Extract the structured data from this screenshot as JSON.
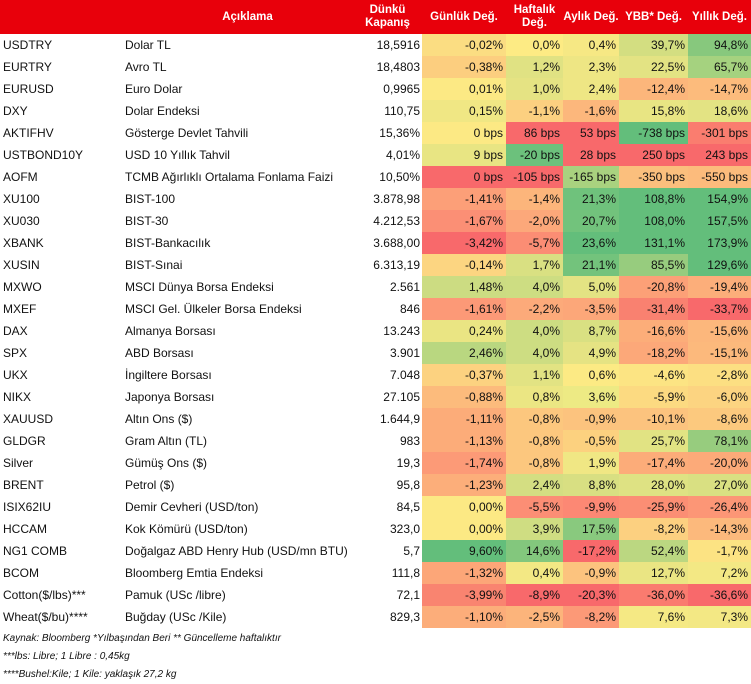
{
  "header": {
    "description": "Açıklama",
    "close": "Dünkü Kapanış",
    "daily": "Günlük Değ.",
    "weekly": "Haftalık Değ.",
    "monthly": "Aylık Değ.",
    "ytd": "YBB* Değ.",
    "yearly": "Yıllık Değ."
  },
  "rows": [
    {
      "code": "USDTRY",
      "desc": "Dolar TL",
      "close": "18,5916",
      "d": "-0,02%",
      "w": "0,0%",
      "m": "0,4%",
      "y": "39,7%",
      "yy": "94,8%"
    },
    {
      "code": "EURTRY",
      "desc": "Avro TL",
      "close": "18,4803",
      "d": "-0,38%",
      "w": "1,2%",
      "m": "2,3%",
      "y": "22,5%",
      "yy": "65,7%"
    },
    {
      "code": "EURUSD",
      "desc": "Euro Dolar",
      "close": "0,9965",
      "d": "0,01%",
      "w": "1,0%",
      "m": "2,4%",
      "y": "-12,4%",
      "yy": "-14,7%"
    },
    {
      "code": "DXY",
      "desc": "Dolar Endeksi",
      "close": "110,75",
      "d": "0,15%",
      "w": "-1,1%",
      "m": "-1,6%",
      "y": "15,8%",
      "yy": "18,6%"
    },
    {
      "code": "AKTIFHV",
      "desc": "Gösterge Devlet Tahvili",
      "close": "15,36%",
      "d": "0 bps",
      "w": "86 bps",
      "m": "53 bps",
      "y": "-738 bps",
      "yy": "-301 bps"
    },
    {
      "code": "USTBOND10Y",
      "desc": "USD 10 Yıllık Tahvil",
      "close": "4,01%",
      "d": "9 bps",
      "w": "-20 bps",
      "m": "28 bps",
      "y": "250 bps",
      "yy": "243 bps"
    },
    {
      "code": "AOFM",
      "desc": "TCMB Ağırlıklı Ortalama Fonlama Faizi",
      "close": "10,50%",
      "d": "0 bps",
      "w": "-105 bps",
      "m": "-165 bps",
      "y": "-350 bps",
      "yy": "-550 bps"
    },
    {
      "code": "XU100",
      "desc": "BIST-100",
      "close": "3.878,98",
      "d": "-1,41%",
      "w": "-1,4%",
      "m": "21,3%",
      "y": "108,8%",
      "yy": "154,9%"
    },
    {
      "code": "XU030",
      "desc": "BIST-30",
      "close": "4.212,53",
      "d": "-1,67%",
      "w": "-2,0%",
      "m": "20,7%",
      "y": "108,0%",
      "yy": "157,5%"
    },
    {
      "code": "XBANK",
      "desc": "BIST-Bankacılık",
      "close": "3.688,00",
      "d": "-3,42%",
      "w": "-5,7%",
      "m": "23,6%",
      "y": "131,1%",
      "yy": "173,9%"
    },
    {
      "code": "XUSIN",
      "desc": "BIST-Sınai",
      "close": "6.313,19",
      "d": "-0,14%",
      "w": "1,7%",
      "m": "21,1%",
      "y": "85,5%",
      "yy": "129,6%"
    },
    {
      "code": "MXWO",
      "desc": "MSCI Dünya Borsa Endeksi",
      "close": "2.561",
      "d": "1,48%",
      "w": "4,0%",
      "m": "5,0%",
      "y": "-20,8%",
      "yy": "-19,4%"
    },
    {
      "code": "MXEF",
      "desc": "MSCI Gel. Ülkeler Borsa Endeksi",
      "close": "846",
      "d": "-1,61%",
      "w": "-2,2%",
      "m": "-3,5%",
      "y": "-31,4%",
      "yy": "-33,7%"
    },
    {
      "code": "DAX",
      "desc": "Almanya Borsası",
      "close": "13.243",
      "d": "0,24%",
      "w": "4,0%",
      "m": "8,7%",
      "y": "-16,6%",
      "yy": "-15,6%"
    },
    {
      "code": "SPX",
      "desc": "ABD Borsası",
      "close": "3.901",
      "d": "2,46%",
      "w": "4,0%",
      "m": "4,9%",
      "y": "-18,2%",
      "yy": "-15,1%"
    },
    {
      "code": "UKX",
      "desc": "İngiltere Borsası",
      "close": "7.048",
      "d": "-0,37%",
      "w": "1,1%",
      "m": "0,6%",
      "y": "-4,6%",
      "yy": "-2,8%"
    },
    {
      "code": "NIKX",
      "desc": "Japonya Borsası",
      "close": "27.105",
      "d": "-0,88%",
      "w": "0,8%",
      "m": "3,6%",
      "y": "-5,9%",
      "yy": "-6,0%"
    },
    {
      "code": "XAUUSD",
      "desc": "Altın Ons ($)",
      "close": "1.644,9",
      "d": "-1,11%",
      "w": "-0,8%",
      "m": "-0,9%",
      "y": "-10,1%",
      "yy": "-8,6%"
    },
    {
      "code": "GLDGR",
      "desc": "Gram Altın (TL)",
      "close": "983",
      "d": "-1,13%",
      "w": "-0,8%",
      "m": "-0,5%",
      "y": "25,7%",
      "yy": "78,1%"
    },
    {
      "code": "Silver",
      "desc": "Gümüş Ons ($)",
      "close": "19,3",
      "d": "-1,74%",
      "w": "-0,8%",
      "m": "1,9%",
      "y": "-17,4%",
      "yy": "-20,0%"
    },
    {
      "code": "BRENT",
      "desc": "Petrol ($)",
      "close": "95,8",
      "d": "-1,23%",
      "w": "2,4%",
      "m": "8,8%",
      "y": "28,0%",
      "yy": "27,0%"
    },
    {
      "code": "ISIX62IU",
      "desc": "Demir Cevheri (USD/ton)",
      "close": "84,5",
      "d": "0,00%",
      "w": "-5,5%",
      "m": "-9,9%",
      "y": "-25,9%",
      "yy": "-26,4%"
    },
    {
      "code": "HCCAM",
      "desc": "Kok Kömürü (USD/ton)",
      "close": "323,0",
      "d": "0,00%",
      "w": "3,9%",
      "m": "17,5%",
      "y": "-8,2%",
      "yy": "-14,3%"
    },
    {
      "code": "NG1 COMB",
      "desc": "Doğalgaz ABD Henry Hub (USD/mn BTU)",
      "close": "5,7",
      "d": "9,60%",
      "w": "14,6%",
      "m": "-17,2%",
      "y": "52,4%",
      "yy": "-1,7%"
    },
    {
      "code": "BCOM",
      "desc": "Bloomberg Emtia Endeksi",
      "close": "111,8",
      "d": "-1,32%",
      "w": "0,4%",
      "m": "-0,9%",
      "y": "12,7%",
      "yy": "7,2%"
    },
    {
      "code": "Cotton($/lbs)***",
      "desc": "Pamuk (USc /libre)",
      "close": "72,1",
      "d": "-3,99%",
      "w": "-8,9%",
      "m": "-20,3%",
      "y": "-36,0%",
      "yy": "-36,6%"
    },
    {
      "code": "Wheat($/bu)****",
      "desc": "Buğday (USc /Kile)",
      "close": "829,3",
      "d": "-1,10%",
      "w": "-2,5%",
      "m": "-8,2%",
      "y": "7,6%",
      "yy": "7,3%"
    }
  ],
  "colors": {
    "d": [
      "#fbdd82",
      "#fcce7f",
      "#fce984",
      "#f0e784",
      "#fce984",
      "#e8e583",
      "#f8696b",
      "#fc9f78",
      "#fb8f75",
      "#f8696b",
      "#fcd581",
      "#ccdc82",
      "#fc9977",
      "#eae583",
      "#b9d780",
      "#fcd280",
      "#fcbb7c",
      "#fcac79",
      "#fcac79",
      "#fc9a77",
      "#fcae7a",
      "#fce984",
      "#fce984",
      "#63be7b",
      "#fca678",
      "#f98470",
      "#fcad7a"
    ],
    "w": [
      "#fdeb84",
      "#e0e283",
      "#e5e383",
      "#fcd080",
      "#f8696b",
      "#6cc17c",
      "#f8696b",
      "#fcb57b",
      "#fca87a",
      "#fb8d74",
      "#d9e082",
      "#cddd82",
      "#fcaa7a",
      "#cddd82",
      "#cddd82",
      "#e2e383",
      "#ebe683",
      "#fcc77e",
      "#fcc77e",
      "#fcc77e",
      "#d4de82",
      "#fc8e75",
      "#cfdd82",
      "#83c77d",
      "#f3e884",
      "#f8696b",
      "#fcb47b"
    ],
    "m": [
      "#f6e884",
      "#eee684",
      "#eee684",
      "#fcb77c",
      "#f8696b",
      "#f8696b",
      "#a9d27f",
      "#6fc27c",
      "#72c37c",
      "#63be7b",
      "#73c37c",
      "#e3e383",
      "#fca779",
      "#d9e082",
      "#e5e383",
      "#fcea84",
      "#edea84",
      "#fcc37e",
      "#fcd17f",
      "#f0e784",
      "#d8df82",
      "#fc8874",
      "#89c97e",
      "#f8696b",
      "#fcc37e",
      "#f8696b",
      "#fc9977"
    ],
    "y": [
      "#d3de81",
      "#e3e383",
      "#fcb67b",
      "#e8e583",
      "#63be7b",
      "#f8696b",
      "#fbbf7d",
      "#63be7b",
      "#63be7b",
      "#63be7b",
      "#97cc7e",
      "#fca077",
      "#f98170",
      "#fcad79",
      "#fca879",
      "#fce483",
      "#fcda81",
      "#fcc37e",
      "#e1e383",
      "#fcac79",
      "#dee283",
      "#fb8e74",
      "#fcd080",
      "#bbd781",
      "#eae583",
      "#fa7b6f",
      "#f5e984"
    ],
    "yy": [
      "#87c87d",
      "#a5d27f",
      "#fcbb7c",
      "#e3e383",
      "#fa7d6f",
      "#f8696b",
      "#fcbb7c",
      "#63be7b",
      "#63be7b",
      "#63be7b",
      "#63be7b",
      "#fcae7a",
      "#f8696b",
      "#fcb77c",
      "#fcb97c",
      "#fcdf82",
      "#fcd481",
      "#fcc97e",
      "#97cc7e",
      "#fcaa79",
      "#d9e082",
      "#fc9676",
      "#fcb97c",
      "#fce383",
      "#f3e884",
      "#f8696b",
      "#f3e884"
    ]
  },
  "footnotes": [
    "Kaynak: Bloomberg *Yılbaşından Beri  ** Güncelleme haftalıktır",
    "***lbs: Libre; 1 Libre : 0,45kg",
    "****Bushel:Kile; 1 Kile: yaklaşık 27,2 kg"
  ]
}
